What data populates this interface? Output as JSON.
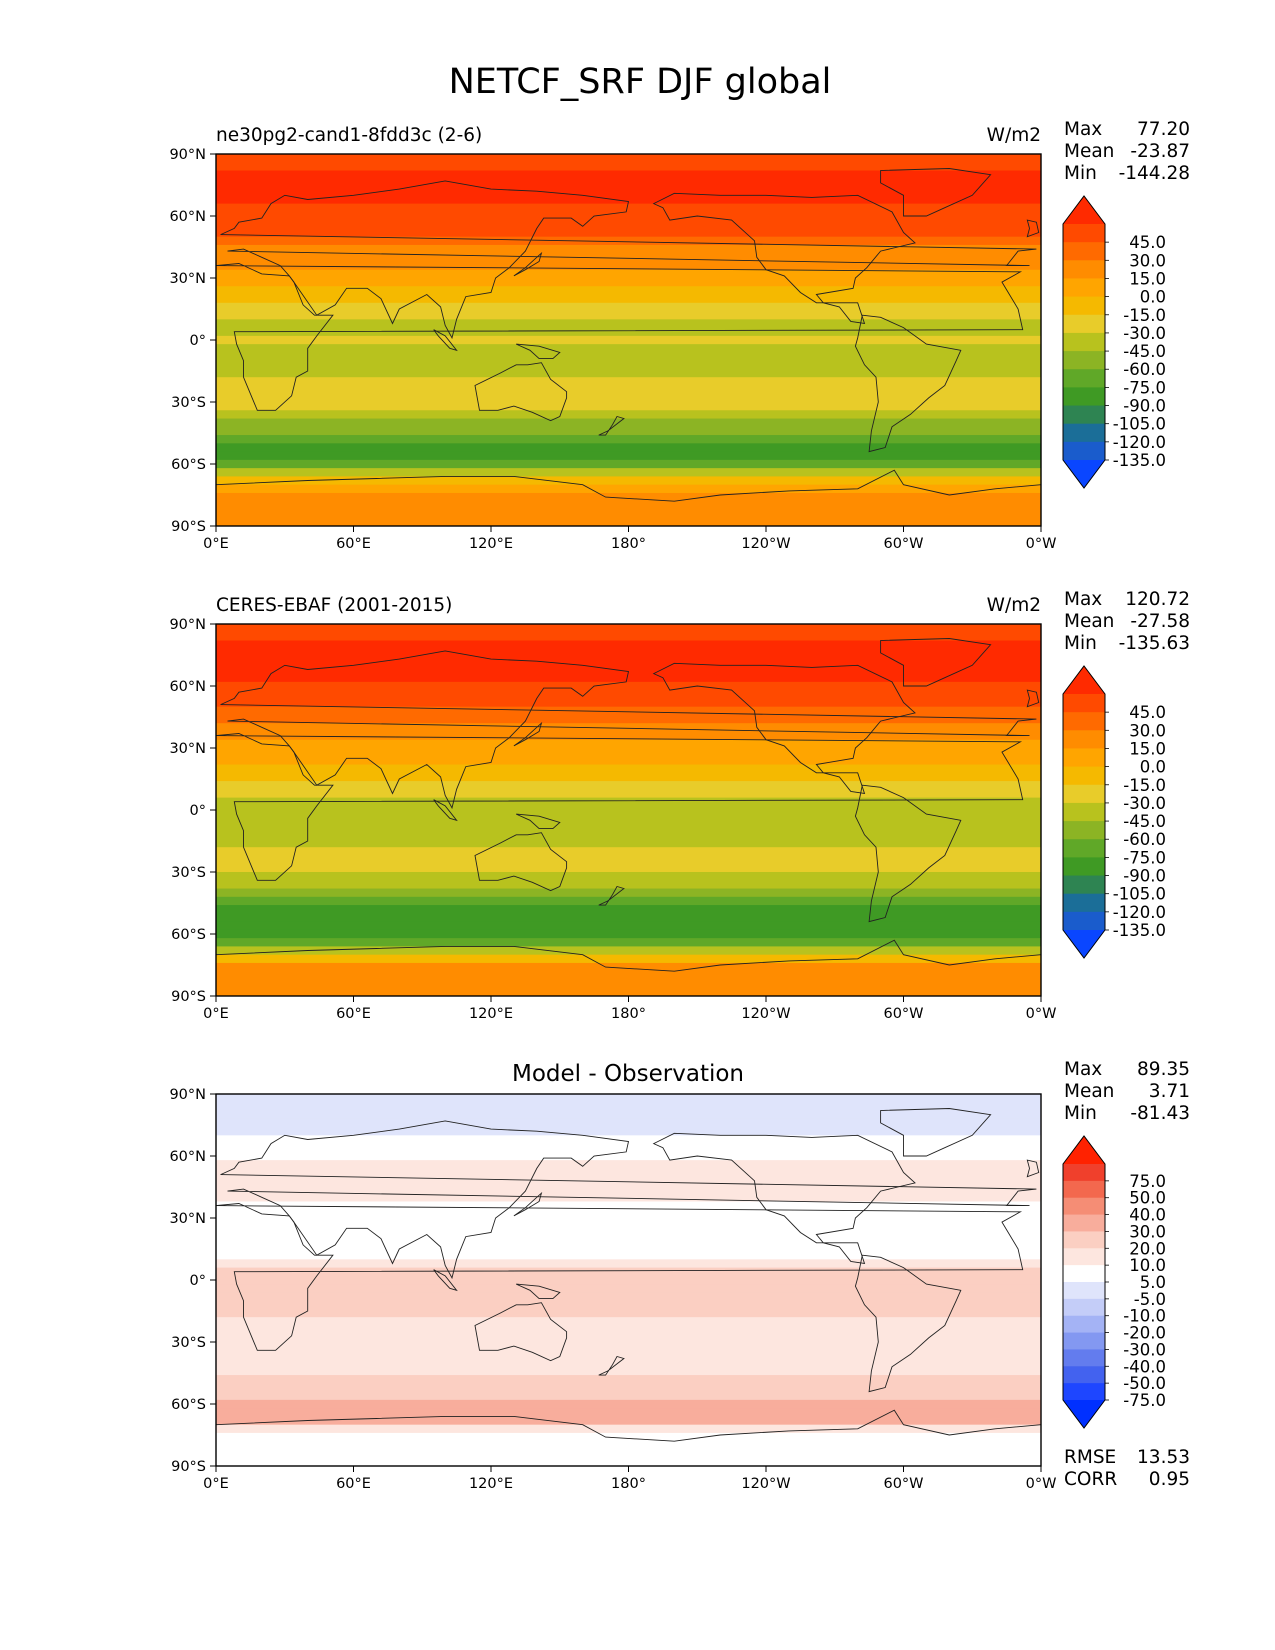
{
  "title": "NETCF_SRF DJF global",
  "chart_data": [
    {
      "type": "heatmap",
      "title": "ne30pg2-cand1-8fdd3c (2-6)",
      "units": "W/m2",
      "x_ticks": [
        "0°E",
        "60°E",
        "120°E",
        "180°",
        "120°W",
        "60°W",
        "0°W"
      ],
      "y_ticks": [
        "90°N",
        "60°N",
        "30°N",
        "0°",
        "30°S",
        "60°S",
        "90°S"
      ],
      "xlim": [
        0,
        360
      ],
      "ylim": [
        -90,
        90
      ],
      "stats": {
        "max_label": "Max",
        "max": "77.20",
        "mean_label": "Mean",
        "mean": "-23.87",
        "min_label": "Min",
        "min": "-144.28"
      },
      "colorbar": {
        "levels": [
          "45.0",
          "30.0",
          "15.0",
          "0.0",
          "-15.0",
          "-30.0",
          "-45.0",
          "-60.0",
          "-75.0",
          "-90.0",
          "-105.0",
          "-120.0",
          "-135.0"
        ],
        "colors": [
          "#ff2a00",
          "#ff4a00",
          "#ff6a00",
          "#ff8c00",
          "#ffa500",
          "#f5b900",
          "#e8cc2a",
          "#b8c21e",
          "#8cb424",
          "#60a828",
          "#3f9a24",
          "#2e8452",
          "#1b6e98",
          "#1a5ccc",
          "#0a46ff"
        ],
        "extend": "both"
      },
      "zonal_profile": {
        "lat": [
          90,
          75,
          62,
          50,
          40,
          30,
          20,
          10,
          5,
          0,
          -5,
          -12,
          -25,
          -35,
          -45,
          -52,
          -60,
          -67,
          -75,
          -90
        ],
        "value": [
          40,
          48,
          44,
          30,
          5,
          -5,
          -25,
          -40,
          -55,
          -40,
          -48,
          -50,
          -35,
          -48,
          -75,
          -100,
          -85,
          -30,
          10,
          15
        ]
      }
    },
    {
      "type": "heatmap",
      "title": "CERES-EBAF (2001-2015)",
      "units": "W/m2",
      "x_ticks": [
        "0°E",
        "60°E",
        "120°E",
        "180°",
        "120°W",
        "60°W",
        "0°W"
      ],
      "y_ticks": [
        "90°N",
        "60°N",
        "30°N",
        "0°",
        "30°S",
        "60°S",
        "90°S"
      ],
      "xlim": [
        0,
        360
      ],
      "ylim": [
        -90,
        90
      ],
      "stats": {
        "max_label": "Max",
        "max": "120.72",
        "mean_label": "Mean",
        "mean": "-27.58",
        "min_label": "Min",
        "min": "-135.63"
      },
      "colorbar": {
        "levels": [
          "45.0",
          "30.0",
          "15.0",
          "0.0",
          "-15.0",
          "-30.0",
          "-45.0",
          "-60.0",
          "-75.0",
          "-90.0",
          "-105.0",
          "-120.0",
          "-135.0"
        ],
        "colors": [
          "#ff2a00",
          "#ff4a00",
          "#ff6a00",
          "#ff8c00",
          "#ffa500",
          "#f5b900",
          "#e8cc2a",
          "#b8c21e",
          "#8cb424",
          "#60a828",
          "#3f9a24",
          "#2e8452",
          "#1b6e98",
          "#1a5ccc",
          "#0a46ff"
        ],
        "extend": "both"
      },
      "zonal_profile": {
        "lat": [
          90,
          75,
          62,
          50,
          40,
          30,
          20,
          10,
          5,
          0,
          -5,
          -12,
          -25,
          -35,
          -45,
          -52,
          -60,
          -67,
          -75,
          -90
        ],
        "value": [
          40,
          52,
          48,
          30,
          8,
          -5,
          -20,
          -35,
          -55,
          -50,
          -55,
          -50,
          -40,
          -55,
          -85,
          -100,
          -95,
          -60,
          5,
          15
        ]
      }
    },
    {
      "type": "heatmap",
      "title": "Model - Observation",
      "units": "",
      "x_ticks": [
        "0°E",
        "60°E",
        "120°E",
        "180°",
        "120°W",
        "60°W",
        "0°W"
      ],
      "y_ticks": [
        "90°N",
        "60°N",
        "30°N",
        "0°",
        "30°S",
        "60°S",
        "90°S"
      ],
      "xlim": [
        0,
        360
      ],
      "ylim": [
        -90,
        90
      ],
      "stats": {
        "max_label": "Max",
        "max": "89.35",
        "mean_label": "Mean",
        "mean": "3.71",
        "min_label": "Min",
        "min": "-81.43"
      },
      "extra_stats": {
        "rmse_label": "RMSE",
        "rmse": "13.53",
        "corr_label": "CORR",
        "corr": "0.95"
      },
      "colorbar": {
        "levels": [
          "75.0",
          "50.0",
          "40.0",
          "30.0",
          "20.0",
          "10.0",
          "5.0",
          "-5.0",
          "-10.0",
          "-20.0",
          "-30.0",
          "-40.0",
          "-50.0",
          "-75.0"
        ],
        "colors": [
          "#ff2200",
          "#f0402c",
          "#f3684e",
          "#f58d75",
          "#f8ad9c",
          "#fbcfc2",
          "#fde6df",
          "#ffffff",
          "#dfe4fb",
          "#c4cdf8",
          "#a4b3f5",
          "#8398f1",
          "#637cee",
          "#4362ef",
          "#1e46ff",
          "#0030ff"
        ],
        "extend": "both"
      },
      "zonal_profile": {
        "lat": [
          90,
          75,
          60,
          45,
          30,
          15,
          5,
          -5,
          -12,
          -20,
          -35,
          -45,
          -55,
          -62,
          -68,
          -75,
          -90
        ],
        "value": [
          -5,
          -10,
          5,
          10,
          0,
          -5,
          10,
          20,
          20,
          10,
          5,
          8,
          15,
          30,
          25,
          -5,
          0
        ]
      }
    }
  ]
}
